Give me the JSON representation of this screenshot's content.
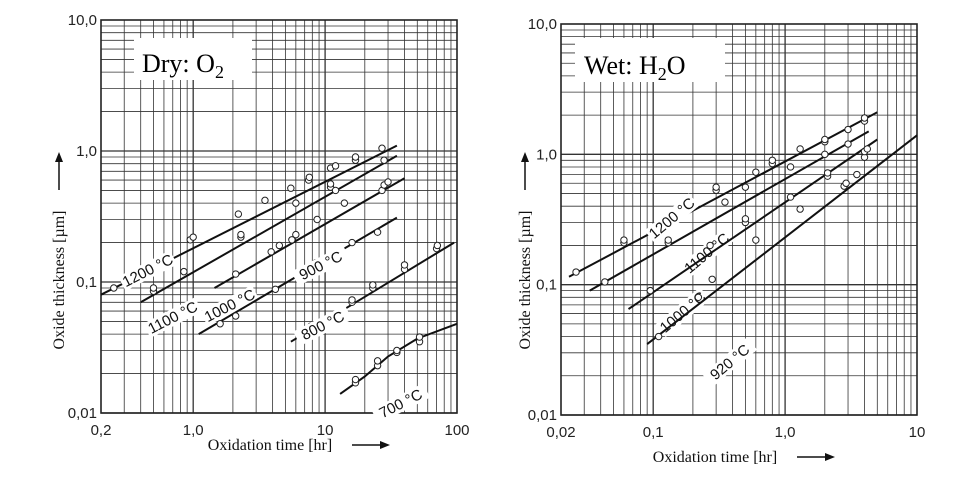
{
  "chart_data": [
    {
      "type": "line",
      "title": "Dry: O2",
      "title_main": "Dry: O",
      "title_sub": "2",
      "xlabel": "Oxidation time [hr]",
      "ylabel": "Oxide thickness [µm]",
      "xscale": "log",
      "yscale": "log",
      "xlim": [
        0.2,
        100
      ],
      "ylim": [
        0.01,
        10
      ],
      "xticks": [
        {
          "v": 0.2,
          "label": "0,2"
        },
        {
          "v": 1,
          "label": "1,0"
        },
        {
          "v": 10,
          "label": "10"
        },
        {
          "v": 100,
          "label": "100"
        }
      ],
      "yticks": [
        {
          "v": 0.01,
          "label": "0,01"
        },
        {
          "v": 0.1,
          "label": "0,1"
        },
        {
          "v": 1,
          "label": "1,0"
        },
        {
          "v": 10,
          "label": "10,0"
        }
      ],
      "grid": true,
      "series": [
        {
          "name": "1200 °C",
          "line": [
            [
              0.2,
              0.08
            ],
            [
              35,
              1.1
            ]
          ],
          "points": [
            [
              0.25,
              0.09
            ],
            [
              0.95,
              0.21
            ],
            [
              1.0,
              0.22
            ],
            [
              2.2,
              0.33
            ],
            [
              3.5,
              0.42
            ],
            [
              5.5,
              0.52
            ],
            [
              7.5,
              0.6
            ],
            [
              7.6,
              0.63
            ],
            [
              11,
              0.74
            ],
            [
              12,
              0.77
            ],
            [
              17,
              0.85
            ],
            [
              17,
              0.9
            ],
            [
              27,
              1.05
            ]
          ]
        },
        {
          "name": "1100 °C",
          "line": [
            [
              0.4,
              0.07
            ],
            [
              35,
              0.92
            ]
          ],
          "points": [
            [
              0.5,
              0.085
            ],
            [
              0.5,
              0.09
            ],
            [
              0.85,
              0.12
            ],
            [
              2.3,
              0.22
            ],
            [
              2.3,
              0.23
            ],
            [
              6,
              0.4
            ],
            [
              11,
              0.53
            ],
            [
              11,
              0.56
            ],
            [
              12,
              0.5
            ],
            [
              28,
              0.85
            ]
          ]
        },
        {
          "name": "1000 °C",
          "line": [
            [
              1.45,
              0.09
            ],
            [
              40,
              0.62
            ]
          ],
          "points": [
            [
              2.1,
              0.115
            ],
            [
              3.9,
              0.17
            ],
            [
              4.5,
              0.19
            ],
            [
              5.6,
              0.21
            ],
            [
              6,
              0.23
            ],
            [
              8.7,
              0.3
            ],
            [
              14,
              0.4
            ],
            [
              27,
              0.5
            ],
            [
              28,
              0.55
            ],
            [
              30,
              0.58
            ]
          ]
        },
        {
          "name": "900 °C",
          "line": [
            [
              1.1,
              0.04
            ],
            [
              35,
              0.31
            ]
          ],
          "points": [
            [
              1.6,
              0.048
            ],
            [
              2.1,
              0.055
            ],
            [
              4.2,
              0.088
            ],
            [
              8.5,
              0.14
            ],
            [
              16,
              0.2
            ],
            [
              25,
              0.24
            ]
          ]
        },
        {
          "name": "800 °C",
          "line": [
            [
              5.5,
              0.035
            ],
            [
              95,
              0.2
            ]
          ],
          "points": [
            [
              7.7,
              0.044
            ],
            [
              7.8,
              0.046
            ],
            [
              16,
              0.07
            ],
            [
              16,
              0.073
            ],
            [
              23,
              0.09
            ],
            [
              23,
              0.095
            ],
            [
              40,
              0.125
            ],
            [
              40,
              0.135
            ],
            [
              70,
              0.18
            ],
            [
              71,
              0.19
            ]
          ]
        },
        {
          "name": "700 °C",
          "line": [
            [
              13,
              0.014
            ],
            [
              20,
              0.019
            ],
            [
              30,
              0.027
            ],
            [
              50,
              0.037
            ],
            [
              100,
              0.048
            ]
          ],
          "points": [
            [
              17,
              0.017
            ],
            [
              17,
              0.018
            ],
            [
              25,
              0.023
            ],
            [
              25,
              0.025
            ],
            [
              35,
              0.029
            ],
            [
              35,
              0.03
            ],
            [
              52,
              0.035
            ],
            [
              52,
              0.038
            ]
          ]
        }
      ]
    },
    {
      "type": "line",
      "title": "Wet: H2O",
      "title_main": "Wet: H",
      "title_sub": "2",
      "title_tail": "O",
      "xlabel": "Oxidation time [hr]",
      "ylabel": "Oxide thickness [µm]",
      "xscale": "log",
      "yscale": "log",
      "xlim": [
        0.02,
        10
      ],
      "ylim": [
        0.01,
        10
      ],
      "xticks": [
        {
          "v": 0.02,
          "label": "0,02"
        },
        {
          "v": 0.1,
          "label": "0,1"
        },
        {
          "v": 1,
          "label": "1,0"
        },
        {
          "v": 10,
          "label": "10"
        }
      ],
      "yticks": [
        {
          "v": 0.01,
          "label": "0,01"
        },
        {
          "v": 0.1,
          "label": "0,1"
        },
        {
          "v": 1,
          "label": "1,0"
        },
        {
          "v": 10,
          "label": "10,0"
        }
      ],
      "grid": true,
      "series": [
        {
          "name": "1200 °C",
          "line": [
            [
              0.023,
              0.115
            ],
            [
              5,
              2.1
            ]
          ],
          "points": [
            [
              0.026,
              0.125
            ],
            [
              0.06,
              0.21
            ],
            [
              0.06,
              0.22
            ],
            [
              0.18,
              0.38
            ],
            [
              0.3,
              0.53
            ],
            [
              0.3,
              0.56
            ],
            [
              0.6,
              0.73
            ],
            [
              0.8,
              0.85
            ],
            [
              0.8,
              0.9
            ],
            [
              1.3,
              1.1
            ],
            [
              2.0,
              1.25
            ],
            [
              2.0,
              1.3
            ],
            [
              3,
              1.55
            ],
            [
              4,
              1.8
            ],
            [
              4,
              1.9
            ]
          ]
        },
        {
          "name": "1100 °C",
          "line": [
            [
              0.033,
              0.09
            ],
            [
              4.3,
              1.5
            ]
          ],
          "points": [
            [
              0.043,
              0.105
            ],
            [
              0.13,
              0.21
            ],
            [
              0.13,
              0.22
            ],
            [
              0.35,
              0.43
            ],
            [
              0.5,
              0.56
            ],
            [
              1.1,
              0.8
            ],
            [
              2,
              1.0
            ],
            [
              3,
              1.2
            ]
          ]
        },
        {
          "name": "1000 °C",
          "line": [
            [
              0.065,
              0.065
            ],
            [
              5,
              1.3
            ]
          ],
          "points": [
            [
              0.095,
              0.09
            ],
            [
              0.27,
              0.2
            ],
            [
              0.5,
              0.3
            ],
            [
              0.5,
              0.32
            ],
            [
              1.1,
              0.47
            ],
            [
              2.1,
              0.68
            ],
            [
              2.1,
              0.72
            ],
            [
              4,
              0.95
            ],
            [
              4,
              1.05
            ],
            [
              4.2,
              1.1
            ]
          ]
        },
        {
          "name": "920 °C",
          "line": [
            [
              0.09,
              0.035
            ],
            [
              10,
              1.4
            ]
          ],
          "points": [
            [
              0.11,
              0.04
            ],
            [
              0.22,
              0.08
            ],
            [
              0.28,
              0.11
            ],
            [
              0.6,
              0.22
            ],
            [
              1.3,
              0.38
            ],
            [
              2.8,
              0.57
            ],
            [
              2.9,
              0.6
            ],
            [
              3.5,
              0.7
            ]
          ]
        }
      ]
    }
  ]
}
